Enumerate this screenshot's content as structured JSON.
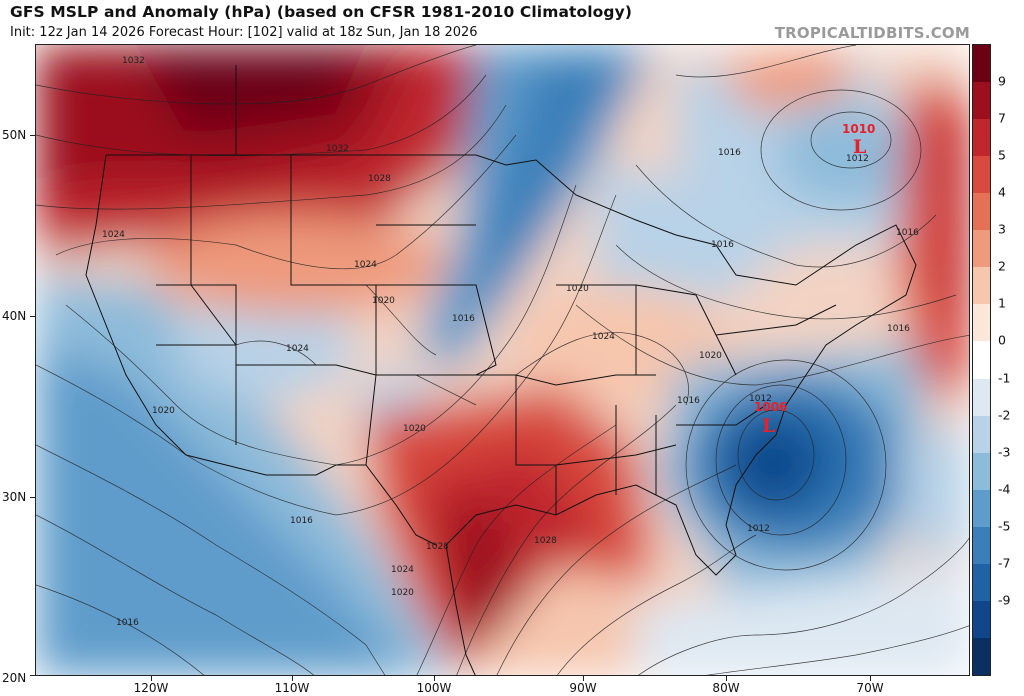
{
  "header": {
    "title": "GFS MSLP and Anomaly (hPa) (based on CFSR 1981-2010 Climatology)",
    "subtitle": "Init: 12z Jan 14 2026   Forecast Hour: [102]   valid at 18z Sun, Jan 18 2026",
    "brand": "TROPICALTIDBITS.COM"
  },
  "axes": {
    "lat_labels": [
      "50N",
      "40N",
      "30N",
      "20N"
    ],
    "lon_labels": [
      "120W",
      "110W",
      "100W",
      "90W",
      "80W",
      "70W"
    ]
  },
  "colorbar": {
    "labels": [
      "9",
      "7",
      "5",
      "4",
      "3",
      "2",
      "1",
      "0",
      "-1",
      "-2",
      "-3",
      "-4",
      "-5",
      "-7",
      "-9"
    ],
    "colors": [
      "#6b0015",
      "#9b0f1f",
      "#c0272d",
      "#d84a3d",
      "#e47155",
      "#ee9a7c",
      "#f6c6ad",
      "#fbe6da",
      "#ffffff",
      "#dde8f2",
      "#b8d2e7",
      "#8dbbda",
      "#5e9ccb",
      "#3a7fb9",
      "#1f63a5",
      "#11478a",
      "#0a2f63"
    ]
  },
  "isobar_labels": {
    "l1032a": "1032",
    "l1032b": "1032",
    "l1028a": "1028",
    "l1028b": "1028",
    "l1028c": "1028",
    "l1024a": "1024",
    "l1024b": "1024",
    "l1024c": "1024",
    "l1024d": "1024",
    "l1024e": "1024",
    "l1020a": "1020",
    "l1020b": "1020",
    "l1020c": "1020",
    "l1020d": "1020",
    "l1020e": "1020",
    "l1020f": "1020",
    "l1016a": "1016",
    "l1016b": "1016",
    "l1016c": "1016",
    "l1016d": "1016",
    "l1016e": "1016",
    "l1016f": "1016",
    "l1016g": "1016",
    "l1016h": "1016",
    "l1012a": "1012",
    "l1012b": "1012",
    "l1012c": "1012"
  },
  "lows": [
    {
      "pressure": "1010",
      "symbol": "L"
    },
    {
      "pressure": "1006",
      "symbol": "L"
    }
  ]
}
